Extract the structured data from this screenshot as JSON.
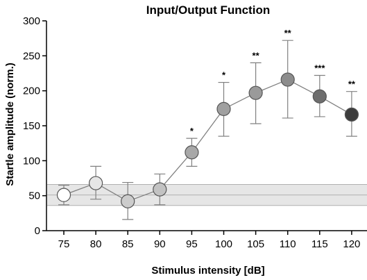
{
  "chart_data": {
    "type": "line",
    "title": "Input/Output Function",
    "xlabel": "Stimulus intensity [dB]",
    "ylabel": "Startle amplitude (norm.)",
    "categories": [
      "75",
      "80",
      "85",
      "90",
      "95",
      "100",
      "105",
      "110",
      "115",
      "120"
    ],
    "series": [
      {
        "values": [
          51,
          68,
          42,
          59,
          112,
          174,
          197,
          216,
          192,
          166
        ],
        "error_low": [
          37,
          45,
          16,
          37,
          92,
          135,
          153,
          161,
          163,
          135
        ],
        "error_high": [
          65,
          92,
          69,
          81,
          132,
          212,
          240,
          272,
          222,
          199
        ],
        "marker_colors": [
          "#ffffff",
          "#e6e6e6",
          "#cccccc",
          "#c2c2c2",
          "#a8a8a8",
          "#a0a0a0",
          "#9a9a9a",
          "#8c8c8c",
          "#6e6e6e",
          "#3c3c3c"
        ]
      }
    ],
    "significance": [
      "",
      "",
      "",
      "",
      "*",
      "*",
      "**",
      "**",
      "***",
      "**"
    ],
    "baseline_band": {
      "center": 51,
      "low": 36,
      "high": 66
    },
    "ylim": [
      0,
      300
    ],
    "yticks": [
      "0",
      "50",
      "100",
      "150",
      "200",
      "250",
      "300"
    ],
    "grid": false,
    "colors": {
      "line": "#808080",
      "band_fill": "#e6e6e6",
      "band_line": "#b0b0b0",
      "marker_stroke": "#555555"
    }
  }
}
